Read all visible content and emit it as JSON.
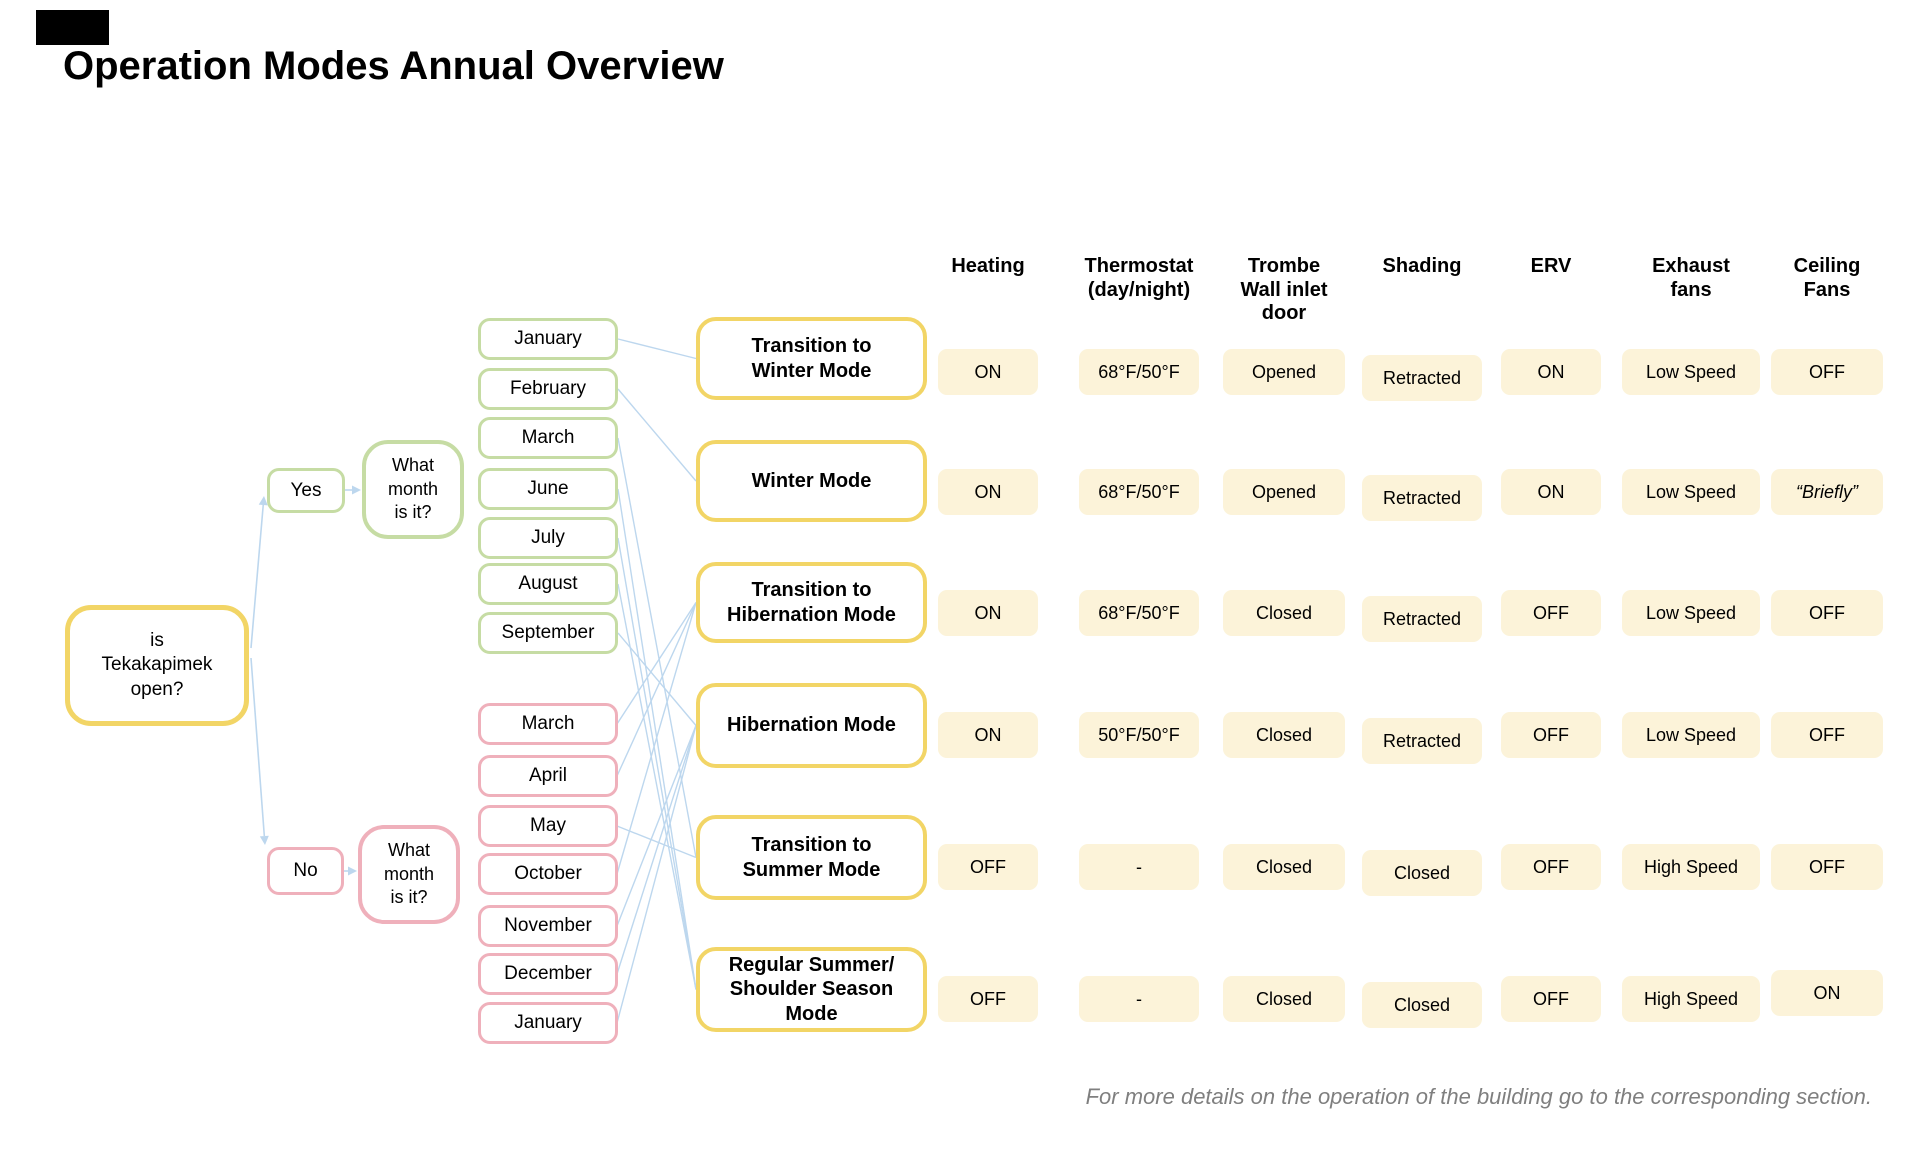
{
  "title": "Operation Modes Annual Overview",
  "tree": {
    "root_question": "is\nTekakapimek\nopen?",
    "yes_label": "Yes",
    "no_label": "No",
    "month_question": "What\nmonth\nis it?",
    "open_months": [
      "January",
      "February",
      "March",
      "June",
      "July",
      "August",
      "September"
    ],
    "closed_months": [
      "March",
      "April",
      "May",
      "October",
      "November",
      "December",
      "January"
    ]
  },
  "modes": [
    "Transition to\nWinter Mode",
    "Winter Mode",
    "Transition to\nHibernation Mode",
    "Hibernation Mode",
    "Transition to\nSummer Mode",
    "Regular Summer/\nShoulder Season\nMode"
  ],
  "table": {
    "columns": [
      "Heating",
      "Thermostat\n(day/night)",
      "Trombe\nWall inlet\ndoor",
      "Shading",
      "ERV",
      "Exhaust\nfans",
      "Ceiling\nFans"
    ],
    "rows": [
      {
        "mode": "Transition to Winter Mode",
        "values": [
          "ON",
          "68°F/50°F",
          "Opened",
          "Retracted",
          "ON",
          "Low Speed",
          "OFF"
        ]
      },
      {
        "mode": "Winter Mode",
        "values": [
          "ON",
          "68°F/50°F",
          "Opened",
          "Retracted",
          "ON",
          "Low Speed",
          "“Briefly”"
        ]
      },
      {
        "mode": "Transition to Hibernation Mode",
        "values": [
          "ON",
          "68°F/50°F",
          "Closed",
          "Retracted",
          "OFF",
          "Low Speed",
          "OFF"
        ]
      },
      {
        "mode": "Hibernation Mode",
        "values": [
          "ON",
          "50°F/50°F",
          "Closed",
          "Retracted",
          "OFF",
          "Low Speed",
          "OFF"
        ]
      },
      {
        "mode": "Transition to Summer Mode",
        "values": [
          "OFF",
          "-",
          "Closed",
          "Closed",
          "OFF",
          "High Speed",
          "OFF"
        ]
      },
      {
        "mode": "Regular Summer/Shoulder Season Mode",
        "values": [
          "OFF",
          "-",
          "Closed",
          "Closed",
          "OFF",
          "High Speed",
          "ON"
        ]
      }
    ]
  },
  "footnote": "For more details on the operation of the building go to the corresponding section.",
  "colors": {
    "mode_border": "#F2D566",
    "open_border": "#C6DCA4",
    "closed_border": "#EFB0BB",
    "connector": "#BDD7EE",
    "cell_bg": "#FCF3D9"
  }
}
